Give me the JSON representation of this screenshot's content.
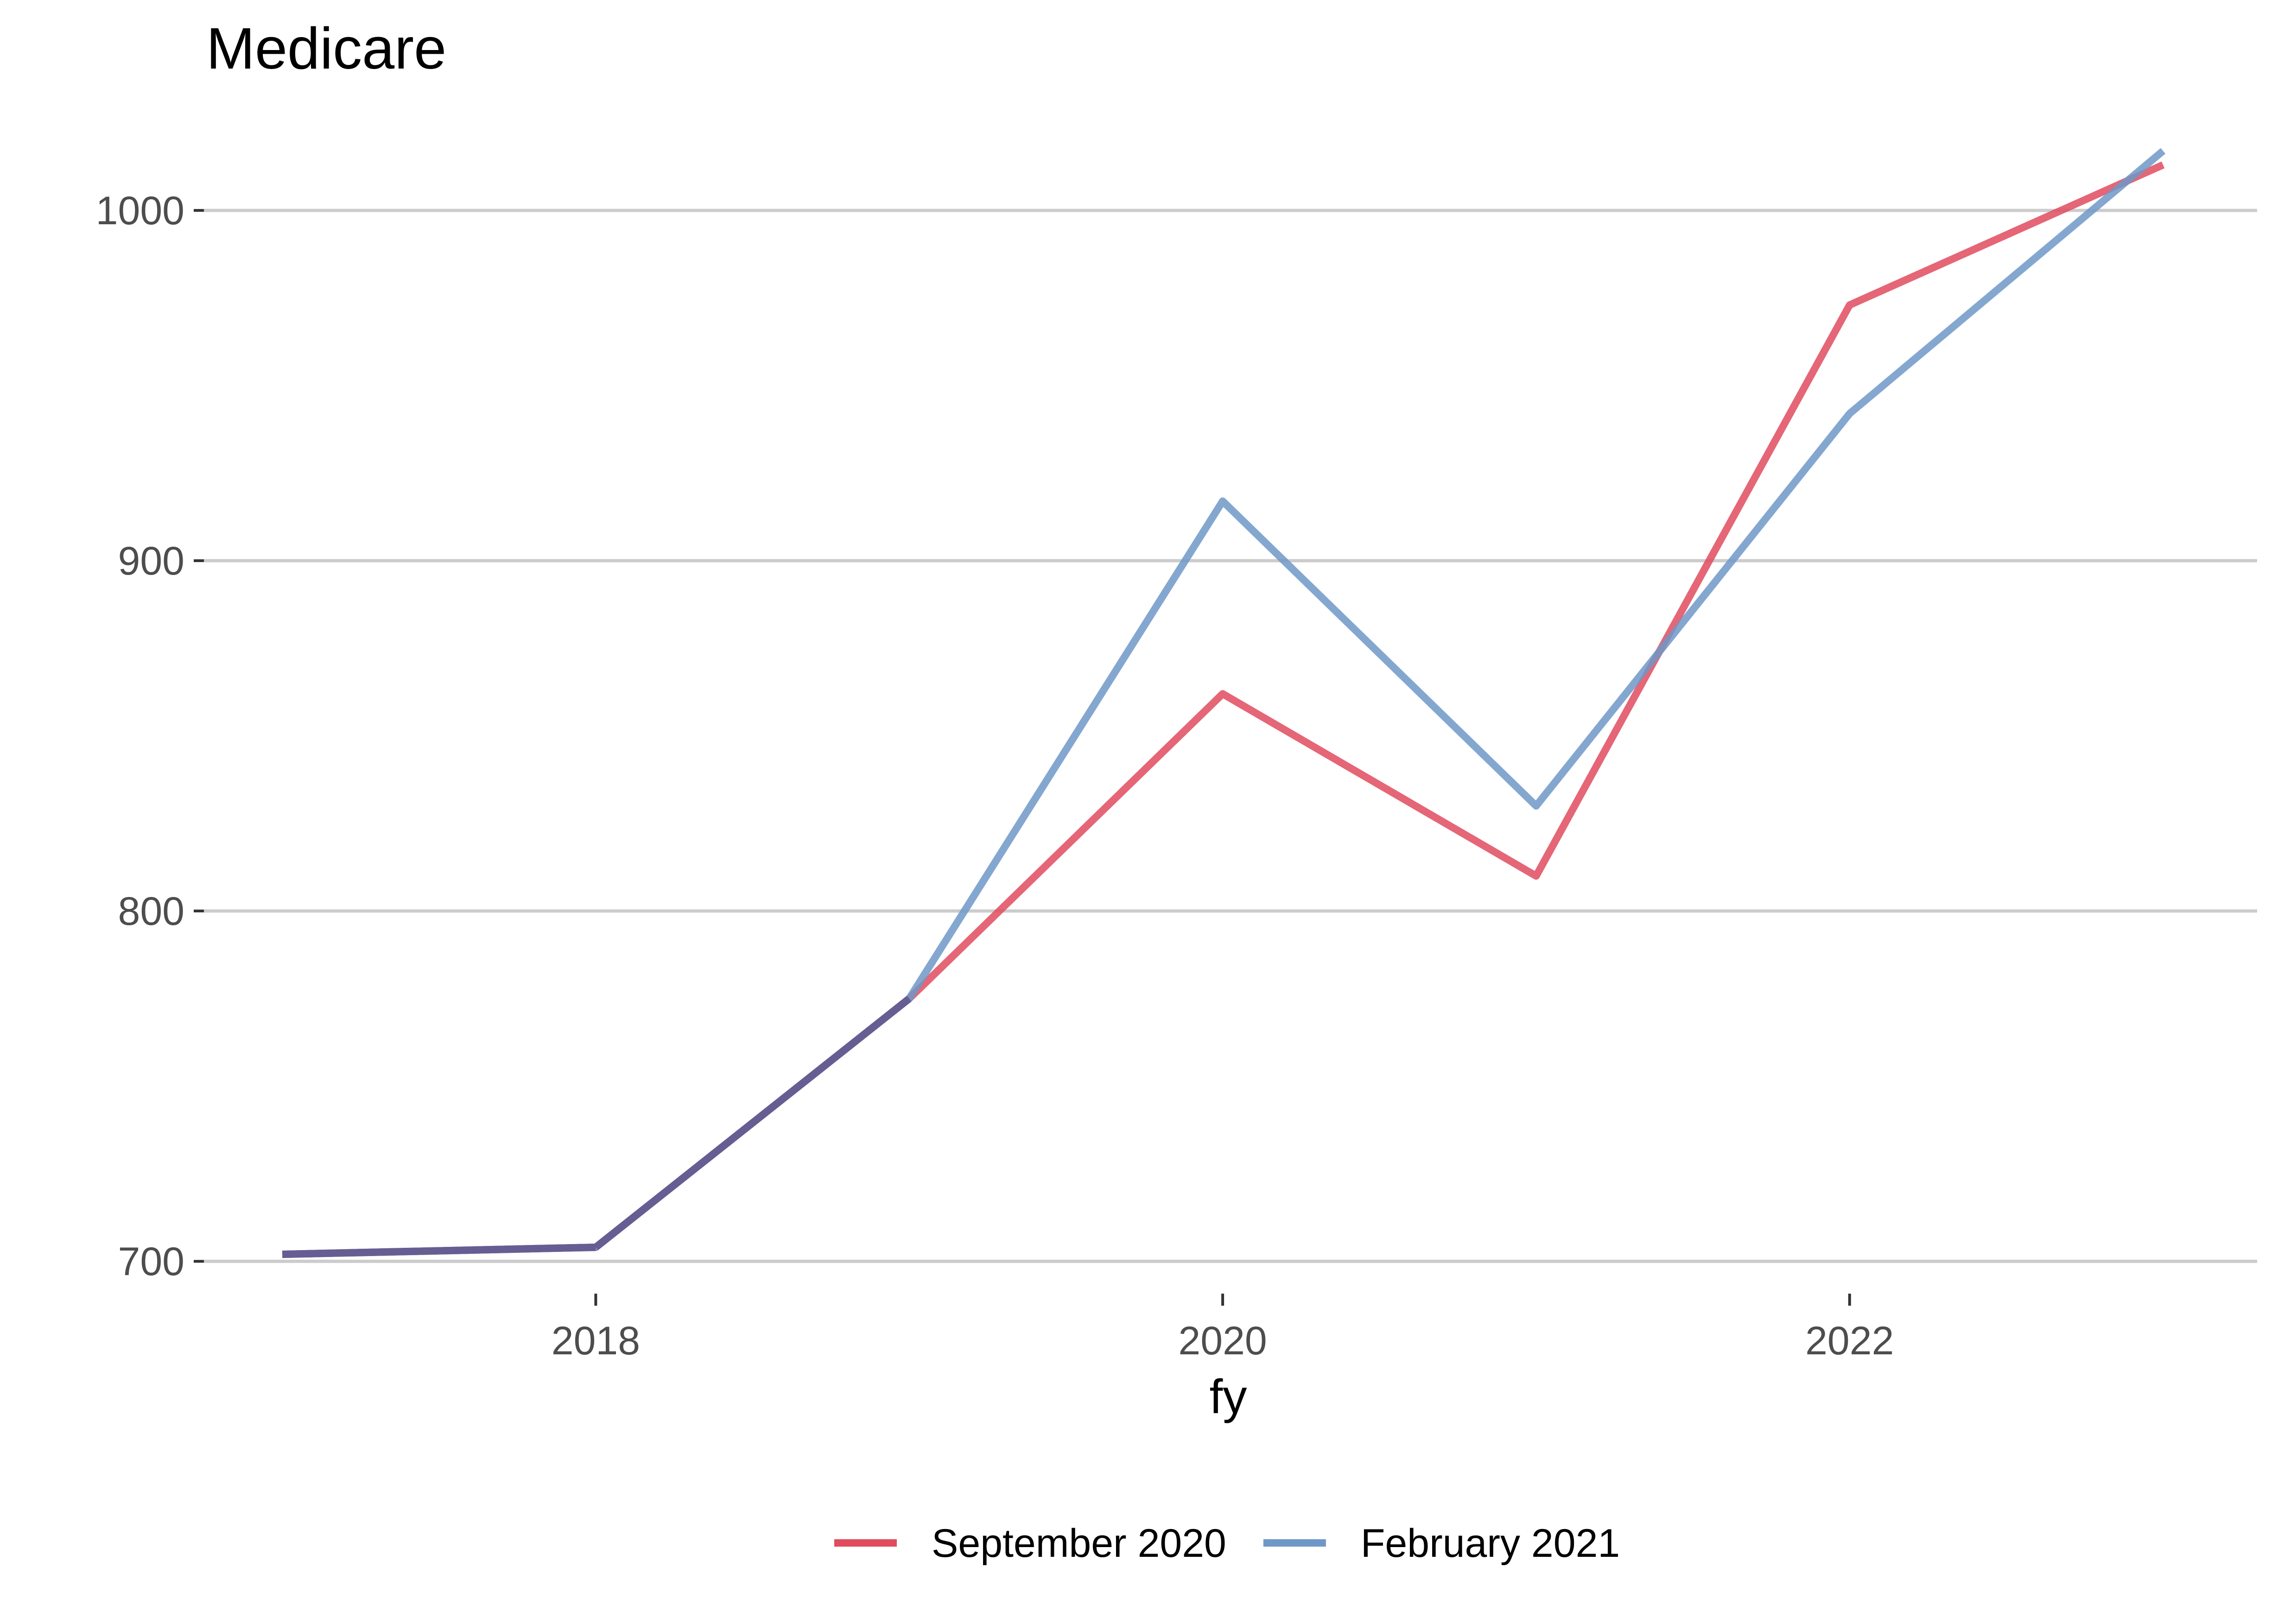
{
  "chart_data": {
    "type": "line",
    "title": "Medicare",
    "xlabel": "fy",
    "ylabel": "",
    "x": [
      2017,
      2018,
      2019,
      2020,
      2021,
      2022,
      2023
    ],
    "xlim": [
      2016.75,
      2023.3
    ],
    "ylim": [
      695,
      1027
    ],
    "xticks": [
      2018,
      2020,
      2022
    ],
    "yticks": [
      700,
      800,
      900,
      1000
    ],
    "grid": "horizontal",
    "legend_position": "bottom",
    "series": [
      {
        "name": "September 2020",
        "color": "#e04b5e",
        "values": [
          702,
          704,
          775,
          862,
          810,
          973,
          1013
        ]
      },
      {
        "name": "February 2021",
        "color": "#6f98c8",
        "values": [
          702,
          704,
          775,
          917,
          830,
          942,
          1017
        ]
      }
    ],
    "overlap_color": "#665e92"
  }
}
